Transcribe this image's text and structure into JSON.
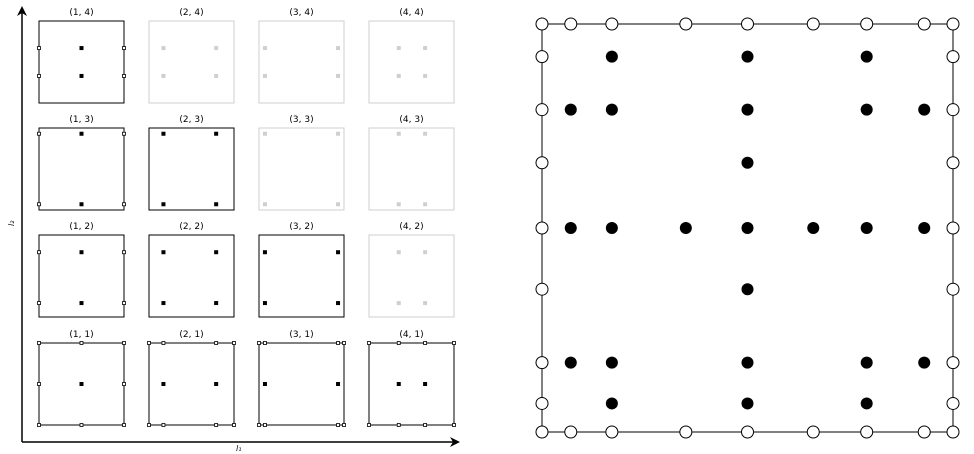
{
  "left_panel": {
    "x_axis_label": "l₁",
    "y_axis_label": "l₂",
    "colors": {
      "active": "#000000",
      "inactive": "#cfcfcf"
    },
    "cells": [
      {
        "label": "(1, 4)",
        "active": true,
        "dots": [
          [
            0.5,
            0.67
          ],
          [
            0.5,
            0.33
          ]
        ],
        "hollow": [
          [
            0,
            0.67
          ],
          [
            1,
            0.67
          ],
          [
            0,
            0.33
          ],
          [
            1,
            0.33
          ]
        ]
      },
      {
        "label": "(2, 4)",
        "active": false,
        "dots": [
          [
            0.17,
            0.67
          ],
          [
            0.79,
            0.67
          ],
          [
            0.17,
            0.33
          ],
          [
            0.79,
            0.33
          ]
        ],
        "hollow": []
      },
      {
        "label": "(3, 4)",
        "active": false,
        "dots": [
          [
            0.07,
            0.67
          ],
          [
            0.93,
            0.67
          ],
          [
            0.07,
            0.33
          ],
          [
            0.93,
            0.33
          ]
        ],
        "hollow": []
      },
      {
        "label": "(4, 4)",
        "active": false,
        "dots": [
          [
            0.35,
            0.67
          ],
          [
            0.66,
            0.67
          ],
          [
            0.35,
            0.33
          ],
          [
            0.66,
            0.33
          ]
        ],
        "hollow": []
      },
      {
        "label": "(1, 3)",
        "active": true,
        "dots": [
          [
            0.5,
            0.93
          ],
          [
            0.5,
            0.07
          ]
        ],
        "hollow": [
          [
            0,
            0.93
          ],
          [
            1,
            0.93
          ],
          [
            0,
            0.07
          ],
          [
            1,
            0.07
          ]
        ]
      },
      {
        "label": "(2, 3)",
        "active": true,
        "dots": [
          [
            0.17,
            0.93
          ],
          [
            0.79,
            0.93
          ],
          [
            0.17,
            0.07
          ],
          [
            0.79,
            0.07
          ]
        ],
        "hollow": []
      },
      {
        "label": "(3, 3)",
        "active": false,
        "dots": [
          [
            0.07,
            0.93
          ],
          [
            0.93,
            0.93
          ],
          [
            0.07,
            0.07
          ],
          [
            0.93,
            0.07
          ]
        ],
        "hollow": []
      },
      {
        "label": "(4, 3)",
        "active": false,
        "dots": [
          [
            0.35,
            0.93
          ],
          [
            0.66,
            0.93
          ],
          [
            0.35,
            0.07
          ],
          [
            0.66,
            0.07
          ]
        ],
        "hollow": []
      },
      {
        "label": "(1, 2)",
        "active": true,
        "dots": [
          [
            0.5,
            0.79
          ],
          [
            0.5,
            0.17
          ]
        ],
        "hollow": [
          [
            0,
            0.79
          ],
          [
            1,
            0.79
          ],
          [
            0,
            0.17
          ],
          [
            1,
            0.17
          ]
        ]
      },
      {
        "label": "(2, 2)",
        "active": true,
        "dots": [
          [
            0.17,
            0.79
          ],
          [
            0.79,
            0.79
          ],
          [
            0.17,
            0.17
          ],
          [
            0.79,
            0.17
          ]
        ],
        "hollow": []
      },
      {
        "label": "(3, 2)",
        "active": true,
        "dots": [
          [
            0.07,
            0.79
          ],
          [
            0.93,
            0.79
          ],
          [
            0.07,
            0.17
          ],
          [
            0.93,
            0.17
          ]
        ],
        "hollow": []
      },
      {
        "label": "(4, 2)",
        "active": false,
        "dots": [
          [
            0.35,
            0.79
          ],
          [
            0.66,
            0.79
          ],
          [
            0.35,
            0.17
          ],
          [
            0.66,
            0.17
          ]
        ],
        "hollow": []
      },
      {
        "label": "(1, 1)",
        "active": true,
        "dots": [
          [
            0.5,
            0.5
          ]
        ],
        "hollow": [
          [
            0,
            1
          ],
          [
            0.5,
            1
          ],
          [
            1,
            1
          ],
          [
            0,
            0.5
          ],
          [
            1,
            0.5
          ],
          [
            0,
            0
          ],
          [
            0.5,
            0
          ],
          [
            1,
            0
          ]
        ]
      },
      {
        "label": "(2, 1)",
        "active": true,
        "dots": [
          [
            0.17,
            0.5
          ],
          [
            0.79,
            0.5
          ]
        ],
        "hollow": [
          [
            0,
            1
          ],
          [
            0.17,
            1
          ],
          [
            0.79,
            1
          ],
          [
            1,
            1
          ],
          [
            0,
            0
          ],
          [
            0.17,
            0
          ],
          [
            0.79,
            0
          ],
          [
            1,
            0
          ]
        ]
      },
      {
        "label": "(3, 1)",
        "active": true,
        "dots": [
          [
            0.07,
            0.5
          ],
          [
            0.93,
            0.5
          ]
        ],
        "hollow": [
          [
            0,
            1
          ],
          [
            0.07,
            1
          ],
          [
            0.93,
            1
          ],
          [
            1,
            1
          ],
          [
            0,
            0
          ],
          [
            0.07,
            0
          ],
          [
            0.93,
            0
          ],
          [
            1,
            0
          ]
        ]
      },
      {
        "label": "(4, 1)",
        "active": true,
        "dots": [
          [
            0.35,
            0.5
          ],
          [
            0.66,
            0.5
          ]
        ],
        "hollow": [
          [
            0,
            1
          ],
          [
            0.35,
            1
          ],
          [
            0.66,
            1
          ],
          [
            1,
            1
          ],
          [
            0,
            0
          ],
          [
            0.35,
            0
          ],
          [
            0.66,
            0
          ],
          [
            1,
            0
          ]
        ]
      }
    ]
  },
  "right_panel": {
    "filled": [
      [
        0.17,
        0.92
      ],
      [
        0.5,
        0.92
      ],
      [
        0.79,
        0.92
      ],
      [
        0.07,
        0.79
      ],
      [
        0.17,
        0.79
      ],
      [
        0.5,
        0.79
      ],
      [
        0.79,
        0.79
      ],
      [
        0.93,
        0.79
      ],
      [
        0.5,
        0.66
      ],
      [
        0.07,
        0.5
      ],
      [
        0.17,
        0.5
      ],
      [
        0.35,
        0.5
      ],
      [
        0.5,
        0.5
      ],
      [
        0.66,
        0.5
      ],
      [
        0.79,
        0.5
      ],
      [
        0.93,
        0.5
      ],
      [
        0.5,
        0.35
      ],
      [
        0.07,
        0.17
      ],
      [
        0.17,
        0.17
      ],
      [
        0.5,
        0.17
      ],
      [
        0.79,
        0.17
      ],
      [
        0.93,
        0.17
      ],
      [
        0.17,
        0.07
      ],
      [
        0.5,
        0.07
      ],
      [
        0.79,
        0.07
      ]
    ],
    "hollow": [
      [
        0,
        1
      ],
      [
        0.07,
        1
      ],
      [
        0.17,
        1
      ],
      [
        0.35,
        1
      ],
      [
        0.5,
        1
      ],
      [
        0.66,
        1
      ],
      [
        0.79,
        1
      ],
      [
        0.93,
        1
      ],
      [
        1,
        1
      ],
      [
        0,
        0
      ],
      [
        0.07,
        0
      ],
      [
        0.17,
        0
      ],
      [
        0.35,
        0
      ],
      [
        0.5,
        0
      ],
      [
        0.66,
        0
      ],
      [
        0.79,
        0
      ],
      [
        0.93,
        0
      ],
      [
        1,
        0
      ],
      [
        0,
        0.92
      ],
      [
        0,
        0.79
      ],
      [
        0,
        0.66
      ],
      [
        0,
        0.5
      ],
      [
        0,
        0.35
      ],
      [
        0,
        0.17
      ],
      [
        0,
        0.07
      ],
      [
        1,
        0.92
      ],
      [
        1,
        0.79
      ],
      [
        1,
        0.66
      ],
      [
        1,
        0.5
      ],
      [
        1,
        0.35
      ],
      [
        1,
        0.17
      ],
      [
        1,
        0.07
      ]
    ]
  }
}
